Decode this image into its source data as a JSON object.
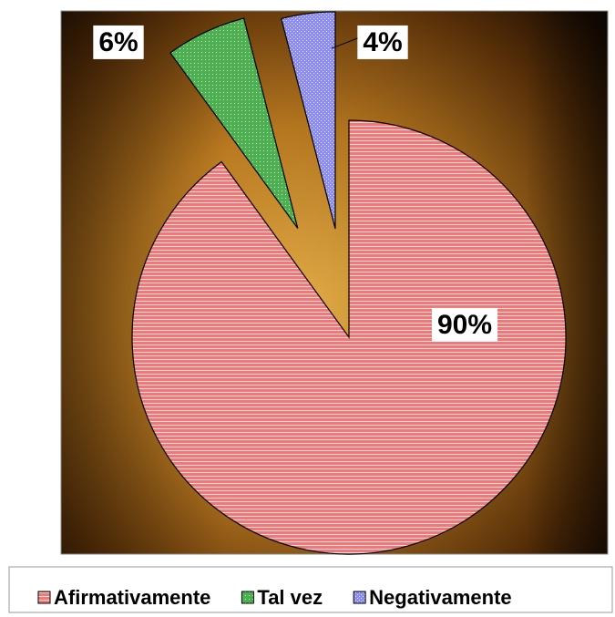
{
  "chart_data": {
    "type": "pie",
    "categories": [
      "Afirmativamente",
      "Tal vez",
      "Negativamente"
    ],
    "values": [
      90,
      6,
      4
    ],
    "value_labels": [
      "90%",
      "6%",
      "4%"
    ],
    "colors": [
      "#f07878",
      "#4caf50",
      "#8c8cf0"
    ],
    "legend": "bottom"
  }
}
